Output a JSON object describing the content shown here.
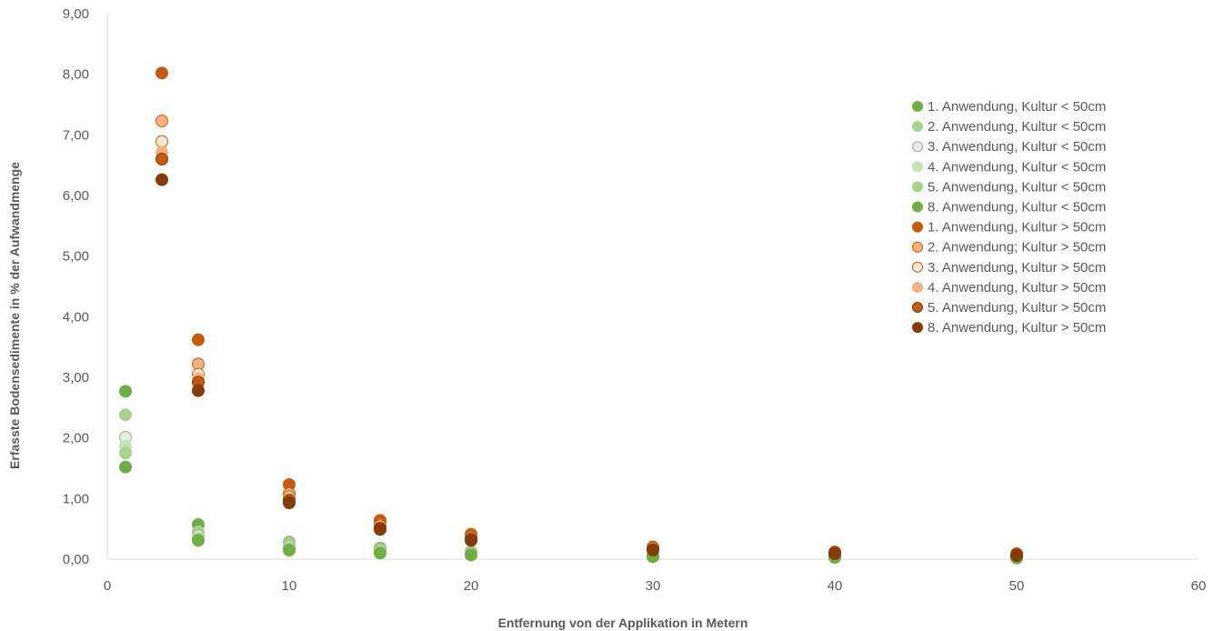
{
  "chart_data": {
    "type": "scatter",
    "title": "",
    "xlabel": "Entfernung von der Applikation in Metern",
    "ylabel": "Erfasste Bodensedimente in % der Aufwandmenge",
    "xlim": [
      0,
      60
    ],
    "ylim": [
      0,
      9
    ],
    "x_ticks": [
      "0",
      "10",
      "20",
      "30",
      "40",
      "50",
      "60"
    ],
    "y_ticks": [
      "0,00",
      "1,00",
      "2,00",
      "3,00",
      "4,00",
      "5,00",
      "6,00",
      "7,00",
      "8,00",
      "9,00"
    ],
    "grid": false,
    "legend_position": "right",
    "series": [
      {
        "name": "1. Anwendung, Kultur < 50cm",
        "color": "#70AD47",
        "stroke": "#70AD47",
        "points": [
          [
            1,
            2.77
          ],
          [
            5,
            0.57
          ],
          [
            10,
            0.28
          ],
          [
            15,
            0.18
          ],
          [
            20,
            0.12
          ],
          [
            30,
            0.06
          ],
          [
            40,
            0.04
          ],
          [
            50,
            0.03
          ]
        ]
      },
      {
        "name": "2. Anwendung, Kultur < 50cm",
        "color": "#A9D18E",
        "stroke": "#A9D18E",
        "points": [
          [
            1,
            2.38
          ],
          [
            5,
            0.45
          ],
          [
            10,
            0.26
          ],
          [
            15,
            0.16
          ],
          [
            20,
            0.11
          ],
          [
            30,
            0.06
          ],
          [
            40,
            0.04
          ],
          [
            50,
            0.03
          ]
        ]
      },
      {
        "name": "3. Anwendung, Kultur < 50cm",
        "color": "#E2EFDA",
        "stroke": "#A6A6A6",
        "points": [
          [
            1,
            2.01
          ],
          [
            5,
            0.39
          ],
          [
            10,
            0.21
          ],
          [
            15,
            0.14
          ],
          [
            20,
            0.09
          ],
          [
            30,
            0.05
          ],
          [
            40,
            0.03
          ],
          [
            50,
            0.02
          ]
        ]
      },
      {
        "name": "4. Anwendung, Kultur < 50cm",
        "color": "#C5E0B4",
        "stroke": "#C5E0B4",
        "points": [
          [
            1,
            1.86
          ],
          [
            5,
            0.36
          ],
          [
            10,
            0.19
          ],
          [
            15,
            0.12
          ],
          [
            20,
            0.08
          ],
          [
            30,
            0.05
          ],
          [
            40,
            0.03
          ],
          [
            50,
            0.02
          ]
        ]
      },
      {
        "name": "5. Anwendung, Kultur < 50cm",
        "color": "#A9D18E",
        "stroke": "#A9D18E",
        "points": [
          [
            1,
            1.75
          ],
          [
            5,
            0.33
          ],
          [
            10,
            0.17
          ],
          [
            15,
            0.11
          ],
          [
            20,
            0.08
          ],
          [
            30,
            0.05
          ],
          [
            40,
            0.03
          ],
          [
            50,
            0.02
          ]
        ]
      },
      {
        "name": "8. Anwendung, Kultur < 50cm",
        "color": "#70AD47",
        "stroke": "#70AD47",
        "points": [
          [
            1,
            1.52
          ],
          [
            5,
            0.31
          ],
          [
            10,
            0.15
          ],
          [
            15,
            0.1
          ],
          [
            20,
            0.07
          ],
          [
            30,
            0.04
          ],
          [
            40,
            0.03
          ],
          [
            50,
            0.02
          ]
        ]
      },
      {
        "name": "1. Anwendung, Kultur > 50cm",
        "color": "#C55A11",
        "stroke": "#C55A11",
        "points": [
          [
            3,
            8.02
          ],
          [
            5,
            3.62
          ],
          [
            10,
            1.23
          ],
          [
            15,
            0.64
          ],
          [
            20,
            0.41
          ],
          [
            30,
            0.2
          ],
          [
            40,
            0.12
          ],
          [
            50,
            0.09
          ]
        ]
      },
      {
        "name": "2. Anwendung; Kultur > 50cm",
        "color": "#F4B183",
        "stroke": "#C55A11",
        "points": [
          [
            3,
            7.23
          ],
          [
            5,
            3.22
          ],
          [
            10,
            1.08
          ],
          [
            15,
            0.57
          ],
          [
            20,
            0.37
          ],
          [
            30,
            0.18
          ],
          [
            40,
            0.11
          ],
          [
            50,
            0.08
          ]
        ]
      },
      {
        "name": "3. Anwendung, Kultur > 50cm",
        "color": "#FBE5D6",
        "stroke": "#C55A11",
        "points": [
          [
            3,
            6.89
          ],
          [
            5,
            3.05
          ],
          [
            10,
            1.03
          ],
          [
            15,
            0.55
          ],
          [
            20,
            0.35
          ],
          [
            30,
            0.17
          ],
          [
            40,
            0.1
          ],
          [
            50,
            0.07
          ]
        ]
      },
      {
        "name": "4. Anwendung, Kultur > 50cm",
        "color": "#F4B183",
        "stroke": "#F4B183",
        "points": [
          [
            3,
            6.71
          ],
          [
            5,
            2.98
          ],
          [
            10,
            1.0
          ],
          [
            15,
            0.53
          ],
          [
            20,
            0.34
          ],
          [
            30,
            0.17
          ],
          [
            40,
            0.1
          ],
          [
            50,
            0.07
          ]
        ]
      },
      {
        "name": "5. Anwendung, Kultur > 50cm",
        "color": "#C55A11",
        "stroke": "#843C0C",
        "points": [
          [
            3,
            6.6
          ],
          [
            5,
            2.92
          ],
          [
            10,
            0.97
          ],
          [
            15,
            0.51
          ],
          [
            20,
            0.33
          ],
          [
            30,
            0.16
          ],
          [
            40,
            0.1
          ],
          [
            50,
            0.07
          ]
        ]
      },
      {
        "name": "8. Anwendung, Kultur > 50cm",
        "color": "#843C0C",
        "stroke": "#843C0C",
        "points": [
          [
            3,
            6.26
          ],
          [
            5,
            2.78
          ],
          [
            10,
            0.93
          ],
          [
            15,
            0.49
          ],
          [
            20,
            0.31
          ],
          [
            30,
            0.15
          ],
          [
            40,
            0.09
          ],
          [
            50,
            0.06
          ]
        ]
      }
    ]
  }
}
